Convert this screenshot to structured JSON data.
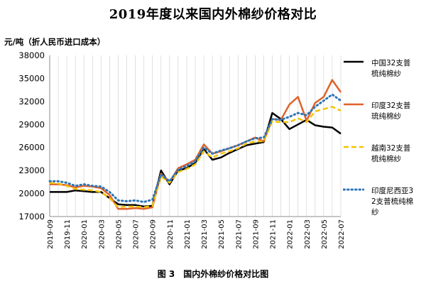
{
  "title": "2019年度以来国内外棉纱价格对比",
  "unit_label": "元/吨（折人民币进口成本）",
  "caption": "图 3　国内外棉纱价格对比图",
  "colors": {
    "china": "#000000",
    "india": "#E0622A",
    "vietnam": "#F5C400",
    "indonesia": "#2E75B6",
    "grid": "#D9D9D9",
    "axis": "#8C8C8C"
  },
  "chart_data": {
    "type": "line",
    "x_start": "2019-09",
    "x_end": "2022-07",
    "x_ticks": [
      "2019-09",
      "2019-11",
      "2020-01",
      "2020-03",
      "2020-05",
      "2020-07",
      "2020-09",
      "2020-11",
      "2021-01",
      "2021-03",
      "2021-05",
      "2021-07",
      "2021-09",
      "2021-11",
      "2022-01",
      "2022-03",
      "2022-05",
      "2022-07"
    ],
    "ylim": [
      17000,
      38000
    ],
    "y_ticks": [
      17000,
      20000,
      23000,
      26000,
      29000,
      32000,
      35000,
      38000
    ],
    "grid": "vertical",
    "legend_position": "right",
    "series": [
      {
        "name": "中国32支普梳纯棉纱",
        "key": "china",
        "style": "solid",
        "points": [
          [
            "2019-09",
            20200
          ],
          [
            "2019-10",
            20200
          ],
          [
            "2019-11",
            20200
          ],
          [
            "2019-12",
            20400
          ],
          [
            "2020-01",
            20300
          ],
          [
            "2020-02",
            20200
          ],
          [
            "2020-03",
            20200
          ],
          [
            "2020-04",
            19400
          ],
          [
            "2020-05",
            18600
          ],
          [
            "2020-06",
            18500
          ],
          [
            "2020-07",
            18500
          ],
          [
            "2020-08",
            18300
          ],
          [
            "2020-09",
            18400
          ],
          [
            "2020-10",
            23000
          ],
          [
            "2020-11",
            21200
          ],
          [
            "2020-12",
            23000
          ],
          [
            "2021-01",
            23300
          ],
          [
            "2021-02",
            24000
          ],
          [
            "2021-03",
            25800
          ],
          [
            "2021-04",
            24400
          ],
          [
            "2021-05",
            24700
          ],
          [
            "2021-06",
            25300
          ],
          [
            "2021-07",
            25800
          ],
          [
            "2021-08",
            26300
          ],
          [
            "2021-09",
            26500
          ],
          [
            "2021-10",
            26700
          ],
          [
            "2021-11",
            30500
          ],
          [
            "2021-12",
            29700
          ],
          [
            "2022-01",
            28400
          ],
          [
            "2022-02",
            29000
          ],
          [
            "2022-03",
            29600
          ],
          [
            "2022-04",
            28900
          ],
          [
            "2022-05",
            28700
          ],
          [
            "2022-06",
            28600
          ],
          [
            "2022-07",
            27800
          ]
        ]
      },
      {
        "name": "印度32支普琉纯棉纱",
        "key": "india",
        "style": "solid",
        "points": [
          [
            "2019-09",
            21200
          ],
          [
            "2019-10",
            21200
          ],
          [
            "2019-11",
            21100
          ],
          [
            "2019-12",
            20800
          ],
          [
            "2020-01",
            21000
          ],
          [
            "2020-02",
            20900
          ],
          [
            "2020-03",
            20700
          ],
          [
            "2020-04",
            19800
          ],
          [
            "2020-05",
            18000
          ],
          [
            "2020-06",
            18000
          ],
          [
            "2020-07",
            18100
          ],
          [
            "2020-08",
            18000
          ],
          [
            "2020-09",
            18200
          ],
          [
            "2020-10",
            22600
          ],
          [
            "2020-11",
            21500
          ],
          [
            "2020-12",
            23300
          ],
          [
            "2021-01",
            23800
          ],
          [
            "2021-02",
            24400
          ],
          [
            "2021-03",
            26400
          ],
          [
            "2021-04",
            25200
          ],
          [
            "2021-05",
            25500
          ],
          [
            "2021-06",
            25900
          ],
          [
            "2021-07",
            26300
          ],
          [
            "2021-08",
            26800
          ],
          [
            "2021-09",
            27300
          ],
          [
            "2021-10",
            26800
          ],
          [
            "2021-11",
            29700
          ],
          [
            "2021-12",
            29600
          ],
          [
            "2022-01",
            31600
          ],
          [
            "2022-02",
            32600
          ],
          [
            "2022-03",
            29500
          ],
          [
            "2022-04",
            31800
          ],
          [
            "2022-05",
            32600
          ],
          [
            "2022-06",
            34800
          ],
          [
            "2022-07",
            33200
          ]
        ]
      },
      {
        "name": "越南32支普梳纯棉纱",
        "key": "vietnam",
        "style": "dashed",
        "points": [
          [
            "2019-09",
            21400
          ],
          [
            "2019-10",
            21300
          ],
          [
            "2019-11",
            21000
          ],
          [
            "2019-12",
            20600
          ],
          [
            "2020-01",
            20500
          ],
          [
            "2020-02",
            20400
          ],
          [
            "2020-03",
            20200
          ],
          [
            "2020-04",
            19400
          ],
          [
            "2020-05",
            18200
          ],
          [
            "2020-06",
            18300
          ],
          [
            "2020-07",
            18300
          ],
          [
            "2020-08",
            18200
          ],
          [
            "2020-09",
            18400
          ],
          [
            "2020-10",
            22200
          ],
          [
            "2020-11",
            21400
          ],
          [
            "2020-12",
            22800
          ],
          [
            "2021-01",
            23200
          ],
          [
            "2021-02",
            23800
          ],
          [
            "2021-03",
            25500
          ],
          [
            "2021-04",
            24700
          ],
          [
            "2021-05",
            25200
          ],
          [
            "2021-06",
            25500
          ],
          [
            "2021-07",
            25900
          ],
          [
            "2021-08",
            26500
          ],
          [
            "2021-09",
            26800
          ],
          [
            "2021-10",
            26800
          ],
          [
            "2021-11",
            29400
          ],
          [
            "2021-12",
            29300
          ],
          [
            "2022-01",
            29300
          ],
          [
            "2022-02",
            29800
          ],
          [
            "2022-03",
            29300
          ],
          [
            "2022-04",
            30700
          ],
          [
            "2022-05",
            31000
          ],
          [
            "2022-06",
            31300
          ],
          [
            "2022-07",
            30800
          ]
        ]
      },
      {
        "name": "印度尼西亚32支普梳纯棉纱",
        "key": "indonesia",
        "style": "dotted",
        "points": [
          [
            "2019-09",
            21600
          ],
          [
            "2019-10",
            21600
          ],
          [
            "2019-11",
            21400
          ],
          [
            "2019-12",
            21000
          ],
          [
            "2020-01",
            21200
          ],
          [
            "2020-02",
            21000
          ],
          [
            "2020-03",
            20900
          ],
          [
            "2020-04",
            20200
          ],
          [
            "2020-05",
            19100
          ],
          [
            "2020-06",
            19000
          ],
          [
            "2020-07",
            19100
          ],
          [
            "2020-08",
            18900
          ],
          [
            "2020-09",
            19200
          ],
          [
            "2020-10",
            22500
          ],
          [
            "2020-11",
            21600
          ],
          [
            "2020-12",
            23100
          ],
          [
            "2021-01",
            23600
          ],
          [
            "2021-02",
            24200
          ],
          [
            "2021-03",
            26000
          ],
          [
            "2021-04",
            25200
          ],
          [
            "2021-05",
            25600
          ],
          [
            "2021-06",
            25900
          ],
          [
            "2021-07",
            26300
          ],
          [
            "2021-08",
            26800
          ],
          [
            "2021-09",
            27200
          ],
          [
            "2021-10",
            27300
          ],
          [
            "2021-11",
            29700
          ],
          [
            "2021-12",
            29600
          ],
          [
            "2022-01",
            30000
          ],
          [
            "2022-02",
            30500
          ],
          [
            "2022-03",
            30200
          ],
          [
            "2022-04",
            31300
          ],
          [
            "2022-05",
            32100
          ],
          [
            "2022-06",
            32900
          ],
          [
            "2022-07",
            32100
          ]
        ]
      }
    ]
  }
}
